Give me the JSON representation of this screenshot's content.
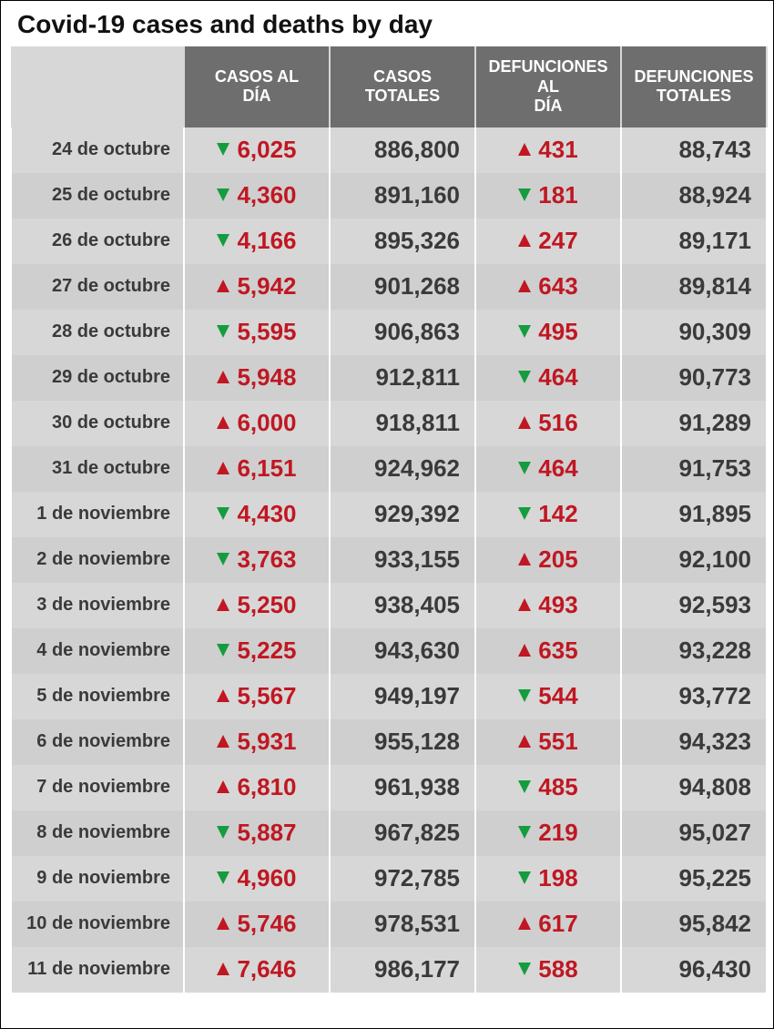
{
  "title": "Covid-19 cases and deaths by day",
  "title_fontsize": 28,
  "colors": {
    "header_bg": "#6e6e6e",
    "header_text": "#ffffff",
    "row_a": "#d7d7d7",
    "row_b": "#cfcfcf",
    "red": "#c01722",
    "green": "#159c3e",
    "dark": "#3a3a3a"
  },
  "columns": [
    "CASOS AL DÍA",
    "CASOS TOTALES",
    "DEFUNCIONES AL DÍA",
    "DEFUNCIONES TOTALES"
  ],
  "rows": [
    {
      "date": "24 de octubre",
      "cases_dir": "down",
      "cases": "6,025",
      "cases_total": "886,800",
      "deaths_dir": "up",
      "deaths": "431",
      "deaths_total": "88,743"
    },
    {
      "date": "25 de octubre",
      "cases_dir": "down",
      "cases": "4,360",
      "cases_total": "891,160",
      "deaths_dir": "down",
      "deaths": "181",
      "deaths_total": "88,924"
    },
    {
      "date": "26 de octubre",
      "cases_dir": "down",
      "cases": "4,166",
      "cases_total": "895,326",
      "deaths_dir": "up",
      "deaths": "247",
      "deaths_total": "89,171"
    },
    {
      "date": "27 de octubre",
      "cases_dir": "up",
      "cases": "5,942",
      "cases_total": "901,268",
      "deaths_dir": "up",
      "deaths": "643",
      "deaths_total": "89,814"
    },
    {
      "date": "28 de octubre",
      "cases_dir": "down",
      "cases": "5,595",
      "cases_total": "906,863",
      "deaths_dir": "down",
      "deaths": "495",
      "deaths_total": "90,309"
    },
    {
      "date": "29 de octubre",
      "cases_dir": "up",
      "cases": "5,948",
      "cases_total": "912,811",
      "deaths_dir": "down",
      "deaths": "464",
      "deaths_total": "90,773"
    },
    {
      "date": "30 de octubre",
      "cases_dir": "up",
      "cases": "6,000",
      "cases_total": "918,811",
      "deaths_dir": "up",
      "deaths": "516",
      "deaths_total": "91,289"
    },
    {
      "date": "31 de octubre",
      "cases_dir": "up",
      "cases": "6,151",
      "cases_total": "924,962",
      "deaths_dir": "down",
      "deaths": "464",
      "deaths_total": "91,753"
    },
    {
      "date": "1 de noviembre",
      "cases_dir": "down",
      "cases": "4,430",
      "cases_total": "929,392",
      "deaths_dir": "down",
      "deaths": "142",
      "deaths_total": "91,895"
    },
    {
      "date": "2 de noviembre",
      "cases_dir": "down",
      "cases": "3,763",
      "cases_total": "933,155",
      "deaths_dir": "up",
      "deaths": "205",
      "deaths_total": "92,100"
    },
    {
      "date": "3 de noviembre",
      "cases_dir": "up",
      "cases": "5,250",
      "cases_total": "938,405",
      "deaths_dir": "up",
      "deaths": "493",
      "deaths_total": "92,593"
    },
    {
      "date": "4 de noviembre",
      "cases_dir": "down",
      "cases": "5,225",
      "cases_total": "943,630",
      "deaths_dir": "up",
      "deaths": "635",
      "deaths_total": "93,228"
    },
    {
      "date": "5 de noviembre",
      "cases_dir": "up",
      "cases": "5,567",
      "cases_total": "949,197",
      "deaths_dir": "down",
      "deaths": "544",
      "deaths_total": "93,772"
    },
    {
      "date": "6 de noviembre",
      "cases_dir": "up",
      "cases": "5,931",
      "cases_total": "955,128",
      "deaths_dir": "up",
      "deaths": "551",
      "deaths_total": "94,323"
    },
    {
      "date": "7 de noviembre",
      "cases_dir": "up",
      "cases": "6,810",
      "cases_total": "961,938",
      "deaths_dir": "down",
      "deaths": "485",
      "deaths_total": "94,808"
    },
    {
      "date": "8 de noviembre",
      "cases_dir": "down",
      "cases": "5,887",
      "cases_total": "967,825",
      "deaths_dir": "down",
      "deaths": "219",
      "deaths_total": "95,027"
    },
    {
      "date": "9 de noviembre",
      "cases_dir": "down",
      "cases": "4,960",
      "cases_total": "972,785",
      "deaths_dir": "down",
      "deaths": "198",
      "deaths_total": "95,225"
    },
    {
      "date": "10 de noviembre",
      "cases_dir": "up",
      "cases": "5,746",
      "cases_total": "978,531",
      "deaths_dir": "up",
      "deaths": "617",
      "deaths_total": "95,842"
    },
    {
      "date": "11 de noviembre",
      "cases_dir": "up",
      "cases": "7,646",
      "cases_total": "986,177",
      "deaths_dir": "down",
      "deaths": "588",
      "deaths_total": "96,430"
    }
  ]
}
